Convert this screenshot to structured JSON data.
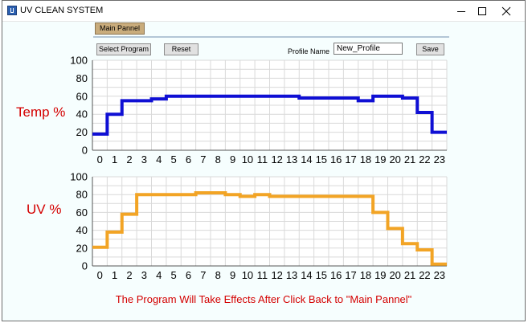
{
  "window": {
    "title": "UV CLEAN SYSTEM",
    "icon": "app-icon"
  },
  "toolbar": {
    "main_pannel_label": "Main Pannel",
    "select_program_label": "Select Program",
    "reset_label": "Reset",
    "profile_name_label": "Profile Name",
    "profile_name_value": "New_Profile",
    "save_label": "Save"
  },
  "labels": {
    "temp": "Temp %",
    "uv": "UV %"
  },
  "footer": {
    "note": "The Program Will Take Effects After Click Back to \"Main Pannel\""
  },
  "chart_data": [
    {
      "type": "line",
      "step": true,
      "x": [
        0,
        1,
        2,
        3,
        4,
        5,
        6,
        7,
        8,
        9,
        10,
        11,
        12,
        13,
        14,
        15,
        16,
        17,
        18,
        19,
        20,
        21,
        22,
        23
      ],
      "values": [
        18,
        40,
        55,
        55,
        57,
        60,
        60,
        60,
        60,
        60,
        60,
        60,
        60,
        60,
        58,
        58,
        58,
        58,
        55,
        60,
        60,
        58,
        42,
        20
      ],
      "ylim": [
        0,
        100
      ],
      "yticks": [
        0,
        20,
        40,
        60,
        80,
        100
      ],
      "xticks": [
        "0",
        "1",
        "2",
        "3",
        "4",
        "5",
        "6",
        "7",
        "8",
        "9",
        "10",
        "11",
        "12",
        "13",
        "14",
        "15",
        "16",
        "17",
        "18",
        "19",
        "20",
        "21",
        "22",
        "23"
      ],
      "grid": true,
      "color": "#0f0fd4"
    },
    {
      "type": "line",
      "step": true,
      "x": [
        0,
        1,
        2,
        3,
        4,
        5,
        6,
        7,
        8,
        9,
        10,
        11,
        12,
        13,
        14,
        15,
        16,
        17,
        18,
        19,
        20,
        21,
        22,
        23
      ],
      "values": [
        21,
        38,
        58,
        80,
        80,
        80,
        80,
        82,
        82,
        80,
        78,
        80,
        78,
        78,
        78,
        78,
        78,
        78,
        78,
        60,
        42,
        25,
        18,
        2
      ],
      "ylim": [
        0,
        100
      ],
      "yticks": [
        0,
        20,
        40,
        60,
        80,
        100
      ],
      "xticks": [
        "0",
        "1",
        "2",
        "3",
        "4",
        "5",
        "6",
        "7",
        "8",
        "9",
        "10",
        "11",
        "12",
        "13",
        "14",
        "15",
        "16",
        "17",
        "18",
        "19",
        "20",
        "21",
        "22",
        "23"
      ],
      "grid": true,
      "color": "#f2a425"
    }
  ]
}
